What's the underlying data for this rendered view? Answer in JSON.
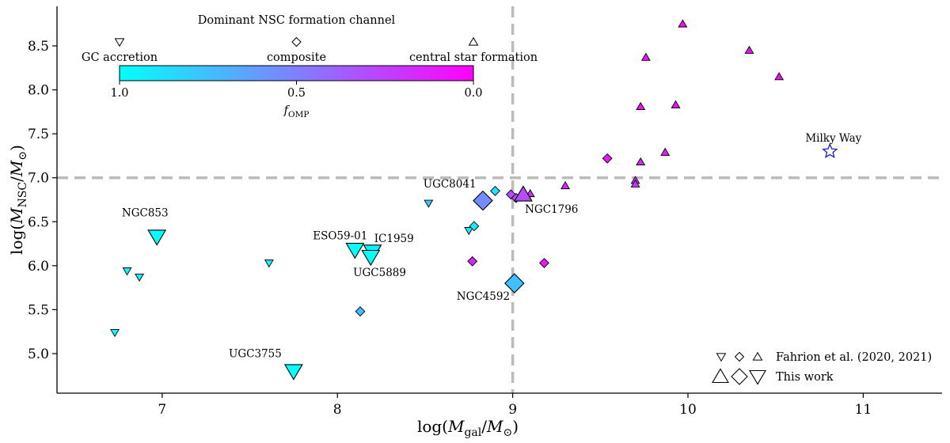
{
  "chart_data": {
    "type": "scatter",
    "title": "",
    "xlabel": "log(M_gal/M_⊙)",
    "ylabel": "log(M_NSC/M_⊙)",
    "xlim": [
      6.4,
      11.45
    ],
    "ylim": [
      4.55,
      8.95
    ],
    "xticks": [
      7,
      8,
      9,
      10,
      11
    ],
    "yticks": [
      5.0,
      5.5,
      6.0,
      6.5,
      7.0,
      7.5,
      8.0,
      8.5
    ],
    "reference_lines": {
      "x": 9,
      "y": 7
    },
    "colorbar": {
      "title": "Dominant NSC formation channel",
      "label": "f_OMP",
      "ticks": [
        "1.0",
        "0.5",
        "0.0"
      ],
      "channels": [
        "GC accretion",
        "composite",
        "central star formation"
      ],
      "color_low": "#00ffff",
      "color_high": "#ff00ff"
    },
    "legend": {
      "position": "bottom-right",
      "entries": [
        "Fahrion et al. (2020, 2021)",
        "This work"
      ]
    },
    "series": [
      {
        "name": "Fahrion et al. (2020, 2021)",
        "points": [
          {
            "x": 6.73,
            "y": 5.24,
            "shape": "tri-down",
            "f": 1.0
          },
          {
            "x": 6.8,
            "y": 5.94,
            "shape": "tri-down",
            "f": 0.98
          },
          {
            "x": 6.87,
            "y": 5.87,
            "shape": "tri-down",
            "f": 0.98
          },
          {
            "x": 7.61,
            "y": 6.03,
            "shape": "tri-down",
            "f": 0.96
          },
          {
            "x": 8.52,
            "y": 6.71,
            "shape": "tri-down",
            "f": 0.8
          },
          {
            "x": 8.13,
            "y": 5.48,
            "shape": "diamond",
            "f": 0.75
          },
          {
            "x": 8.75,
            "y": 6.4,
            "shape": "tri-down",
            "f": 0.9
          },
          {
            "x": 8.78,
            "y": 6.45,
            "shape": "diamond",
            "f": 0.92
          },
          {
            "x": 8.9,
            "y": 6.85,
            "shape": "diamond",
            "f": 0.9
          },
          {
            "x": 8.77,
            "y": 6.05,
            "shape": "diamond",
            "f": 0.15
          },
          {
            "x": 9.18,
            "y": 6.03,
            "shape": "diamond",
            "f": 0.1
          },
          {
            "x": 8.99,
            "y": 6.81,
            "shape": "diamond",
            "f": 0.3
          },
          {
            "x": 9.02,
            "y": 6.77,
            "shape": "diamond",
            "f": 0.3
          },
          {
            "x": 9.1,
            "y": 6.82,
            "shape": "tri-up",
            "f": 0.15
          },
          {
            "x": 9.3,
            "y": 6.91,
            "shape": "tri-up",
            "f": 0.15
          },
          {
            "x": 9.54,
            "y": 7.22,
            "shape": "diamond",
            "f": 0.1
          },
          {
            "x": 9.7,
            "y": 6.97,
            "shape": "tri-up",
            "f": 0.2
          },
          {
            "x": 9.7,
            "y": 6.93,
            "shape": "tri-up",
            "f": 0.2
          },
          {
            "x": 9.73,
            "y": 7.18,
            "shape": "tri-up",
            "f": 0.15
          },
          {
            "x": 9.73,
            "y": 7.81,
            "shape": "tri-up",
            "f": 0.05
          },
          {
            "x": 9.76,
            "y": 8.37,
            "shape": "tri-up",
            "f": 0.05
          },
          {
            "x": 9.87,
            "y": 7.29,
            "shape": "tri-up",
            "f": 0.1
          },
          {
            "x": 9.93,
            "y": 7.83,
            "shape": "tri-up",
            "f": 0.05
          },
          {
            "x": 9.97,
            "y": 8.75,
            "shape": "tri-up",
            "f": 0.02
          },
          {
            "x": 10.35,
            "y": 8.45,
            "shape": "tri-up",
            "f": 0.05
          },
          {
            "x": 10.52,
            "y": 8.15,
            "shape": "tri-up",
            "f": 0.05
          }
        ]
      },
      {
        "name": "This work",
        "points": [
          {
            "x": 6.97,
            "y": 6.33,
            "shape": "tri-down",
            "f": 1.0
          },
          {
            "x": 7.75,
            "y": 4.8,
            "shape": "tri-down",
            "f": 1.0
          },
          {
            "x": 8.1,
            "y": 6.18,
            "shape": "tri-down",
            "f": 1.0
          },
          {
            "x": 8.2,
            "y": 6.16,
            "shape": "tri-down",
            "f": 0.97
          },
          {
            "x": 8.19,
            "y": 6.1,
            "shape": "tri-down",
            "f": 1.0
          },
          {
            "x": 8.83,
            "y": 6.74,
            "shape": "diamond",
            "f": 0.55
          },
          {
            "x": 9.01,
            "y": 5.8,
            "shape": "diamond",
            "f": 0.75
          },
          {
            "x": 9.06,
            "y": 6.81,
            "shape": "tri-up",
            "f": 0.3
          }
        ]
      },
      {
        "name": "Milky Way",
        "points": [
          {
            "x": 10.81,
            "y": 7.3,
            "shape": "star"
          }
        ]
      }
    ],
    "annotations": [
      {
        "text": "NGC853",
        "x": 6.77,
        "y": 6.56
      },
      {
        "text": "UGC3755",
        "x": 7.38,
        "y": 4.96
      },
      {
        "text": "ESO59-01",
        "x": 7.86,
        "y": 6.3
      },
      {
        "text": "IC1959",
        "x": 8.21,
        "y": 6.27
      },
      {
        "text": "UGC5889",
        "x": 8.09,
        "y": 5.88
      },
      {
        "text": "UGC8041",
        "x": 8.49,
        "y": 6.89
      },
      {
        "text": "NGC4592",
        "x": 8.68,
        "y": 5.61
      },
      {
        "text": "NGC1796",
        "x": 9.07,
        "y": 6.6
      },
      {
        "text": "Milky Way",
        "x": 10.67,
        "y": 7.41
      }
    ]
  }
}
